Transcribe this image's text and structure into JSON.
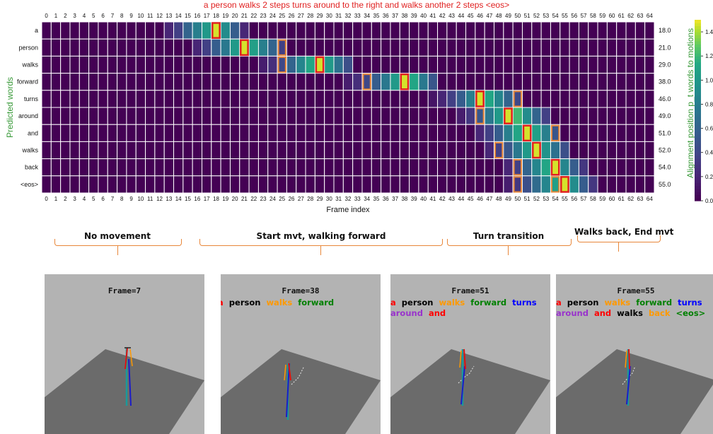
{
  "chart_data": {
    "type": "heatmap",
    "title": "a person walks 2 steps turns around to the right and walks another 2 steps <eos>",
    "xlabel": "Frame index",
    "ylabel": "Predicted words",
    "ylabel_right": "Alignment position p_t words to motions",
    "x_ticks": [
      0,
      1,
      2,
      3,
      4,
      5,
      6,
      7,
      8,
      9,
      10,
      11,
      12,
      13,
      14,
      15,
      16,
      17,
      18,
      19,
      20,
      21,
      22,
      23,
      24,
      25,
      26,
      27,
      28,
      29,
      30,
      31,
      32,
      33,
      34,
      35,
      36,
      37,
      38,
      39,
      40,
      41,
      42,
      43,
      44,
      45,
      46,
      47,
      48,
      49,
      50,
      51,
      52,
      53,
      54,
      55,
      56,
      57,
      58,
      59,
      60,
      61,
      62,
      63,
      64
    ],
    "rows": [
      "a",
      "person",
      "walks",
      "forward",
      "turns",
      "around",
      "and",
      "walks",
      "back",
      "<eos>"
    ],
    "alignment_positions": [
      "18.0",
      "21.0",
      "29.0",
      "38.0",
      "46.0",
      "49.0",
      "51.0",
      "52.0",
      "54.0",
      "55.0"
    ],
    "colorbar_ticks": [
      "1.4",
      "1.2",
      "1.0",
      "0.8",
      "0.6",
      "0.4",
      "0.2",
      "0.0"
    ],
    "colorbar_range": [
      0,
      1.5
    ],
    "colormap": "viridis",
    "grid": true,
    "cells": [
      {
        "row": 0,
        "cols": [
          13,
          14,
          15,
          16,
          17,
          18,
          19,
          20,
          21
        ],
        "values": [
          0.2,
          0.35,
          0.6,
          0.8,
          1.0,
          1.45,
          0.9,
          0.55,
          0.2
        ]
      },
      {
        "row": 1,
        "cols": [
          16,
          17,
          18,
          19,
          20,
          21,
          22,
          23,
          24,
          25
        ],
        "values": [
          0.2,
          0.35,
          0.55,
          0.75,
          1.0,
          1.45,
          1.05,
          0.8,
          0.6,
          0.35
        ]
      },
      {
        "row": 2,
        "cols": [
          23,
          24,
          25,
          26,
          27,
          28,
          29,
          30,
          31,
          32
        ],
        "values": [
          0.15,
          0.25,
          0.4,
          0.6,
          0.85,
          1.1,
          1.45,
          1.0,
          0.7,
          0.45
        ]
      },
      {
        "row": 3,
        "cols": [
          32,
          33,
          34,
          35,
          36,
          37,
          38,
          39,
          40,
          41
        ],
        "values": [
          0.15,
          0.25,
          0.4,
          0.55,
          0.75,
          1.0,
          1.45,
          1.1,
          0.75,
          0.5
        ]
      },
      {
        "row": 4,
        "cols": [
          41,
          42,
          43,
          44,
          45,
          46,
          47,
          48,
          49,
          50
        ],
        "values": [
          0.1,
          0.2,
          0.35,
          0.55,
          0.8,
          1.45,
          1.1,
          0.85,
          0.6,
          0.4
        ]
      },
      {
        "row": 5,
        "cols": [
          44,
          45,
          46,
          47,
          48,
          49,
          50,
          51,
          52,
          53
        ],
        "values": [
          0.15,
          0.3,
          0.5,
          0.75,
          1.0,
          1.45,
          1.2,
          0.9,
          0.6,
          0.35
        ]
      },
      {
        "row": 6,
        "cols": [
          46,
          47,
          48,
          49,
          50,
          51,
          52,
          53,
          54
        ],
        "values": [
          0.2,
          0.35,
          0.55,
          0.8,
          1.1,
          1.45,
          1.05,
          0.8,
          0.5
        ]
      },
      {
        "row": 7,
        "cols": [
          47,
          48,
          49,
          50,
          51,
          52,
          53,
          54,
          55
        ],
        "values": [
          0.2,
          0.35,
          0.5,
          0.75,
          1.0,
          1.45,
          0.95,
          0.7,
          0.45
        ]
      },
      {
        "row": 8,
        "cols": [
          49,
          50,
          51,
          52,
          53,
          54,
          55,
          56,
          57
        ],
        "values": [
          0.2,
          0.35,
          0.6,
          0.85,
          1.1,
          1.45,
          0.85,
          0.55,
          0.3
        ]
      },
      {
        "row": 9,
        "cols": [
          49,
          50,
          51,
          52,
          53,
          54,
          55,
          56,
          57,
          58
        ],
        "values": [
          0.15,
          0.3,
          0.45,
          0.65,
          0.85,
          1.05,
          1.45,
          0.9,
          0.55,
          0.3
        ]
      }
    ],
    "highlight_red": [
      [
        0,
        18
      ],
      [
        1,
        21
      ],
      [
        2,
        29
      ],
      [
        3,
        38
      ],
      [
        4,
        46
      ],
      [
        5,
        49
      ],
      [
        6,
        51
      ],
      [
        7,
        52
      ],
      [
        8,
        54
      ],
      [
        9,
        55
      ]
    ],
    "highlight_orange": [
      [
        1,
        25
      ],
      [
        2,
        25
      ],
      [
        3,
        34
      ],
      [
        4,
        50
      ],
      [
        5,
        46
      ],
      [
        6,
        54
      ],
      [
        7,
        48
      ],
      [
        8,
        50
      ],
      [
        9,
        50
      ],
      [
        9,
        54
      ]
    ]
  },
  "segments": [
    {
      "label": "No movement"
    },
    {
      "label": "Start mvt, walking forward"
    },
    {
      "label": "Turn transition"
    },
    {
      "label": "Walks back, End mvt"
    }
  ],
  "panels": [
    {
      "frame_label": "Frame=7",
      "words": []
    },
    {
      "frame_label": "Frame=38",
      "words": [
        {
          "text": "a",
          "color": "#ff0000"
        },
        {
          "text": "person",
          "color": "#000000"
        },
        {
          "text": "walks",
          "color": "#ff9900"
        },
        {
          "text": "forward",
          "color": "#008000"
        }
      ]
    },
    {
      "frame_label": "Frame=51",
      "words": [
        {
          "text": "a",
          "color": "#ff0000"
        },
        {
          "text": "person",
          "color": "#000000"
        },
        {
          "text": "walks",
          "color": "#ff9900"
        },
        {
          "text": "forward",
          "color": "#008000"
        },
        {
          "text": "turns",
          "color": "#0000ff"
        },
        {
          "text": "around",
          "color": "#9933cc"
        },
        {
          "text": "and",
          "color": "#ff0000"
        }
      ]
    },
    {
      "frame_label": "Frame=55",
      "words": [
        {
          "text": "a",
          "color": "#ff0000"
        },
        {
          "text": "person",
          "color": "#000000"
        },
        {
          "text": "walks",
          "color": "#ff9900"
        },
        {
          "text": "forward",
          "color": "#008000"
        },
        {
          "text": "turns",
          "color": "#0000ff"
        },
        {
          "text": "around",
          "color": "#9933cc"
        },
        {
          "text": "and",
          "color": "#ff0000"
        },
        {
          "text": "walks",
          "color": "#000000"
        },
        {
          "text": "back",
          "color": "#ff9900"
        },
        {
          "text": "<eos>",
          "color": "#008000"
        }
      ]
    }
  ],
  "colors": {
    "accent_title": "#e02020",
    "axis_label": "#3a9a3a",
    "brace": "#e8873a",
    "panel_bg": "#b3b3b3",
    "floor": "#6b6b6b"
  }
}
